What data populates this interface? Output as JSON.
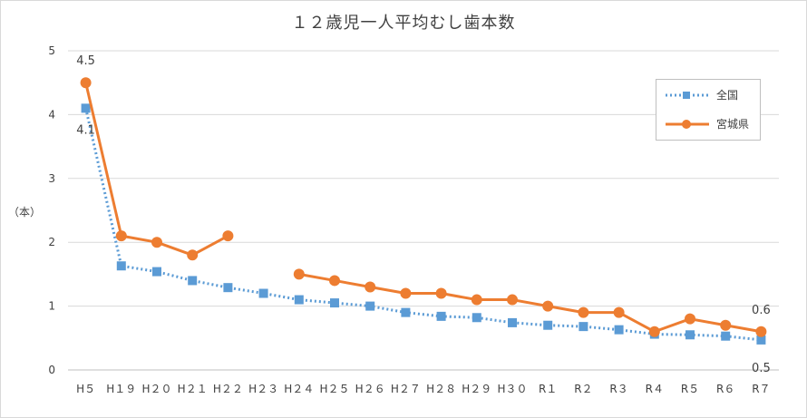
{
  "chart_data": {
    "type": "line",
    "title": "１２歳児一人平均むし歯本数",
    "ylabel": "（本）",
    "xlabel": "",
    "ylim": [
      0,
      5
    ],
    "yticks": [
      "0",
      "1",
      "2",
      "3",
      "4",
      "5"
    ],
    "grid": true,
    "legend_position": "top-right",
    "categories": [
      "H5",
      "H19",
      "H20",
      "H21",
      "H22",
      "H23",
      "H24",
      "H25",
      "H26",
      "H27",
      "H28",
      "H29",
      "H30",
      "R1",
      "R2",
      "R3",
      "R4",
      "R5",
      "R6",
      "R7"
    ],
    "category_labels": [
      "H５",
      "H１９",
      "H２０",
      "H２１",
      "H２２",
      "H２３",
      "H２４",
      "H２５",
      "H２６",
      "H２７",
      "H２８",
      "H２９",
      "H３０",
      "R１",
      "R２",
      "R３",
      "R４",
      "R５",
      "R６",
      "R７"
    ],
    "series": [
      {
        "name": "全国",
        "color": "#5b9bd5",
        "style": "dotted",
        "marker": "square",
        "values": [
          4.1,
          1.63,
          1.54,
          1.4,
          1.29,
          1.2,
          1.1,
          1.05,
          1.0,
          0.9,
          0.84,
          0.82,
          0.74,
          0.7,
          0.68,
          0.63,
          0.56,
          0.55,
          0.53,
          0.47
        ]
      },
      {
        "name": "宮城県",
        "color": "#ed7d31",
        "style": "solid",
        "marker": "circle",
        "values": [
          4.5,
          2.1,
          2.0,
          1.8,
          2.1,
          null,
          1.5,
          1.4,
          1.3,
          1.2,
          1.2,
          1.1,
          1.1,
          1.0,
          0.9,
          0.9,
          0.6,
          0.8,
          0.7,
          0.6
        ]
      }
    ],
    "data_labels": [
      {
        "series": 1,
        "index": 0,
        "text": "4.5"
      },
      {
        "series": 0,
        "index": 0,
        "text": "4.1"
      },
      {
        "series": 1,
        "index": 19,
        "text": "0.6"
      },
      {
        "series": 0,
        "index": 19,
        "text": "0.5"
      }
    ]
  }
}
